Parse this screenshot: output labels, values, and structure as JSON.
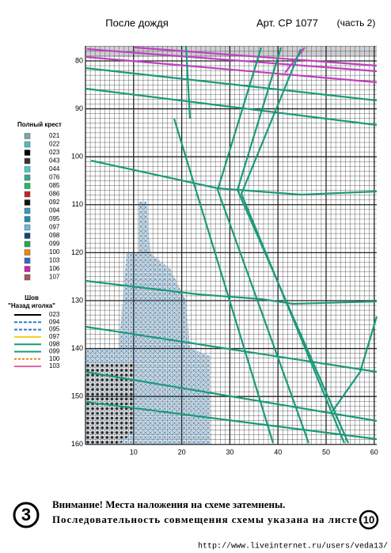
{
  "header": {
    "title": "После дождя",
    "article": "Арт. СР 1077",
    "part": "(часть 2)"
  },
  "legend": {
    "title": "Полный крест",
    "items": [
      "021",
      "022",
      "023",
      "043",
      "044",
      "076",
      "085",
      "086",
      "092",
      "094",
      "095",
      "097",
      "098",
      "099",
      "100",
      "103",
      "106",
      "107"
    ],
    "stitch_title": "Шов",
    "stitch_subtitle": "\"Назад иголка\"",
    "stitch_items": [
      "023",
      "094",
      "095",
      "097",
      "098",
      "099",
      "100",
      "103"
    ]
  },
  "grid": {
    "row_labels": [
      "80",
      "90",
      "100",
      "110",
      "120",
      "130",
      "140",
      "150",
      "160"
    ],
    "col_labels": [
      "10",
      "20",
      "30",
      "40",
      "50",
      "60"
    ]
  },
  "footer": {
    "step": "3",
    "notice_line1": "Внимание! Места наложения на схеме затемнены.",
    "notice_line2": "Последовательность совмещения схемы указана на листе",
    "page": "10"
  },
  "watermark": "http://www.liveinternet.ru/users/veda13/"
}
